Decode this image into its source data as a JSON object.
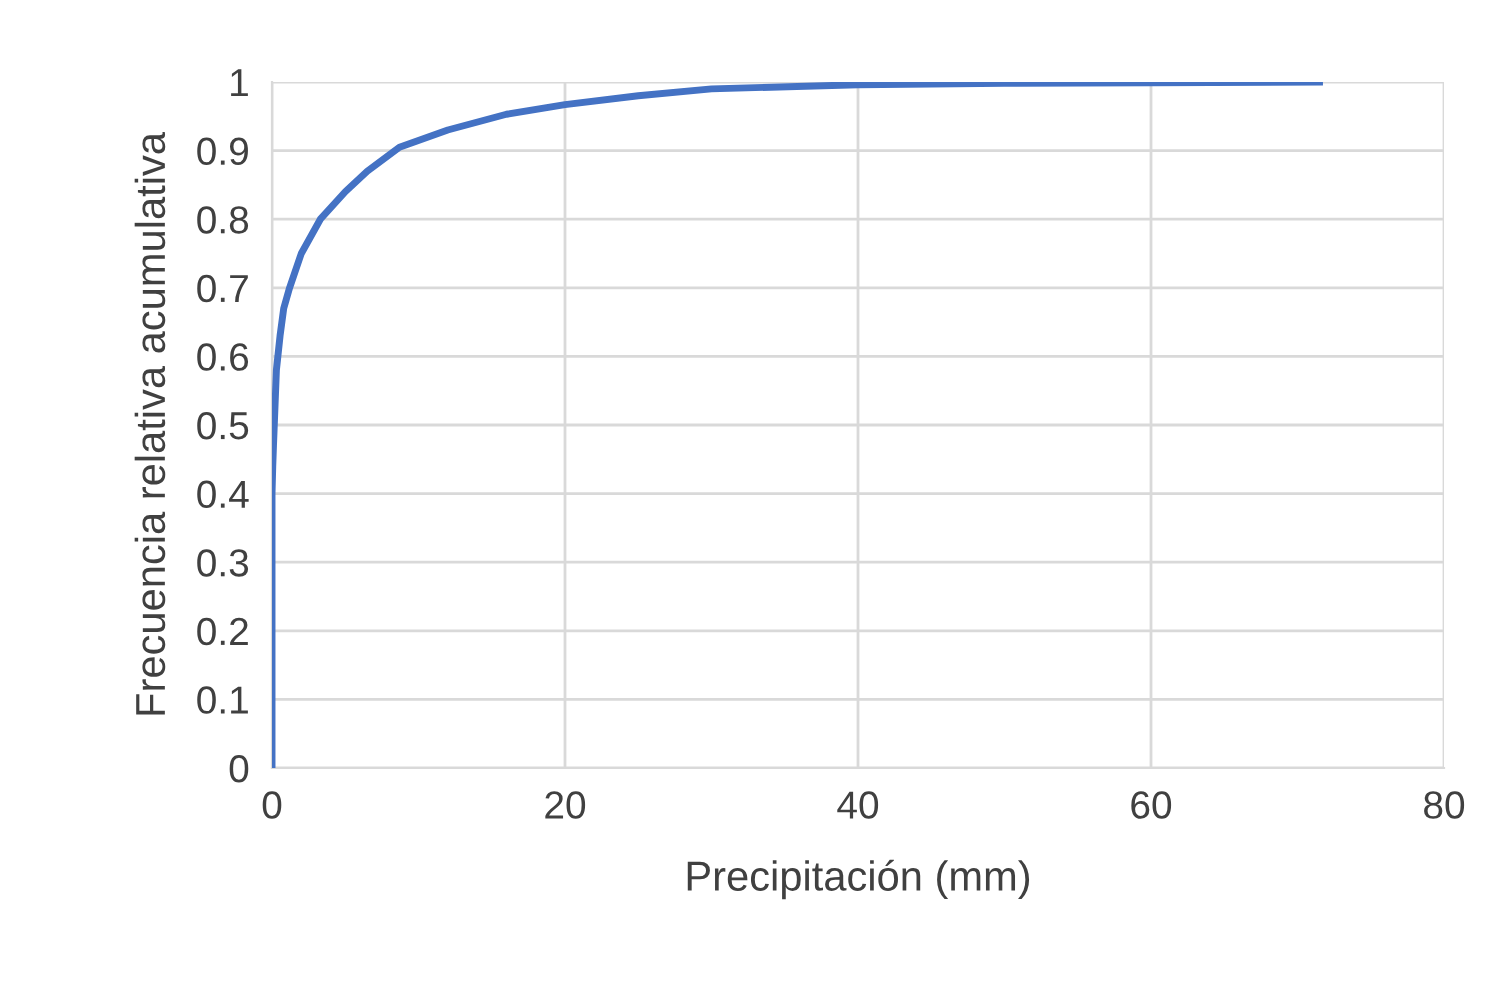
{
  "chart_data": {
    "type": "line",
    "xlabel": "Precipitación (mm)",
    "ylabel": "Frecuencia relativa acumulativa",
    "series": [
      {
        "color": "#4472c4",
        "x": [
          0,
          0,
          0.05,
          0.1,
          0.3,
          0.55,
          0.8,
          1.2,
          2,
          3.3,
          5,
          6.5,
          8.7,
          12,
          16,
          20,
          25,
          30,
          40,
          50,
          60,
          71.5
        ],
        "values": [
          0,
          0.4,
          0.44,
          0.47,
          0.58,
          0.63,
          0.67,
          0.7,
          0.75,
          0.8,
          0.84,
          0.87,
          0.905,
          0.93,
          0.953,
          0.967,
          0.98,
          0.99,
          0.996,
          0.998,
          0.999,
          1
        ]
      }
    ],
    "xlim": [
      0,
      80
    ],
    "xticks": [
      0,
      20,
      40,
      60,
      80
    ],
    "ylim": [
      0,
      1
    ],
    "yticks": [
      0,
      0.1,
      0.2,
      0.3,
      0.4,
      0.5,
      0.6,
      0.7,
      0.8,
      0.9,
      1
    ],
    "grid": true,
    "marker": "none",
    "line_style": "solid",
    "legend": false
  }
}
